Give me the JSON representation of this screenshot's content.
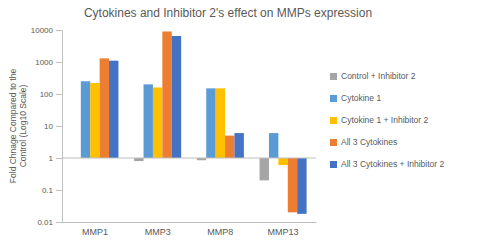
{
  "chart_data": {
    "type": "bar",
    "title": "Cytokines and Inhibitor 2's effect on MMPs expression",
    "y_label": "Fold Chnage Compared to the Control (Log10 Scale)",
    "categories": [
      "MMP1",
      "MMP3",
      "MMP8",
      "MMP13"
    ],
    "series": [
      {
        "name": "Control + Inhibitor 2",
        "color": "#a5a5a5",
        "values": [
          1,
          0.8,
          0.85,
          0.2
        ]
      },
      {
        "name": "Cytokine 1",
        "color": "#5b9bd5",
        "values": [
          250,
          200,
          150,
          6
        ]
      },
      {
        "name": "Cytokine 1 + Inhibitor 2",
        "color": "#ffc000",
        "values": [
          220,
          160,
          150,
          0.6
        ]
      },
      {
        "name": "All 3 Cytokines",
        "color": "#ed7d31",
        "values": [
          1300,
          9000,
          5,
          0.02
        ]
      },
      {
        "name": "All 3 Cytokines + Inhibitor 2",
        "color": "#4472c4",
        "values": [
          1100,
          6500,
          6,
          0.018
        ]
      }
    ],
    "ylim": [
      0.01,
      10000
    ],
    "yticks": [
      0.01,
      0.1,
      1,
      10,
      100,
      1000,
      10000
    ],
    "log": "y",
    "grid": false,
    "legend": "right",
    "data_labels": false
  }
}
